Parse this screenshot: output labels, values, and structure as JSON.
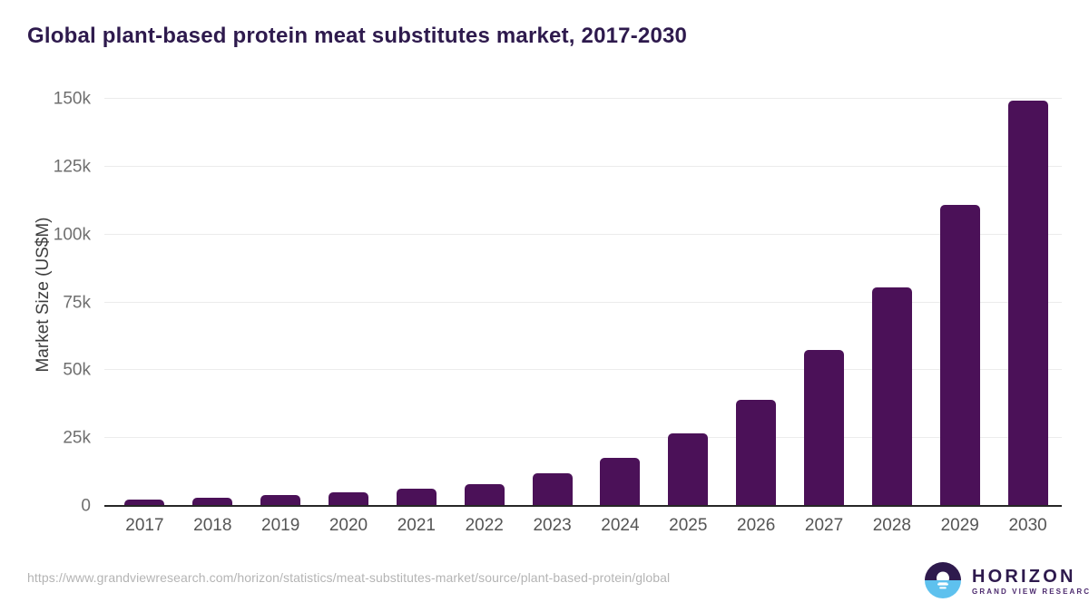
{
  "title": "Global plant-based protein meat substitutes market, 2017-2030",
  "chart_data": {
    "type": "bar",
    "title": "Global plant-based protein meat substitutes market, 2017-2030",
    "categories": [
      "2017",
      "2018",
      "2019",
      "2020",
      "2021",
      "2022",
      "2023",
      "2024",
      "2025",
      "2026",
      "2027",
      "2028",
      "2029",
      "2030"
    ],
    "values": [
      2250,
      3050,
      4100,
      5000,
      6300,
      8100,
      11900,
      17700,
      26600,
      39200,
      57300,
      80400,
      110900,
      149300
    ],
    "xlabel": "",
    "ylabel": "Market Size (US$M)",
    "ylim": [
      0,
      150000
    ],
    "yticks": [
      {
        "label": "0",
        "value": 0
      },
      {
        "label": "25k",
        "value": 25000
      },
      {
        "label": "50k",
        "value": 50000
      },
      {
        "label": "75k",
        "value": 75000
      },
      {
        "label": "100k",
        "value": 100000
      },
      {
        "label": "125k",
        "value": 125000
      },
      {
        "label": "150k",
        "value": 150000
      }
    ],
    "grid": "horizontal",
    "legend": "none",
    "bar_color": "#4b1158"
  },
  "footer": {
    "source_url": "https://www.grandviewresearch.com/horizon/statistics/meat-substitutes-market/source/plant-based-protein/global",
    "logo": {
      "brand": "HORIZON",
      "sub_brand": "GRAND VIEW RESEARCH"
    }
  },
  "colors": {
    "bar": "#4b1158",
    "title_text": "#2e1a4d",
    "tick_text": "#6f6f6f",
    "xtick_text": "#555555",
    "gridline": "#ececec",
    "axis_line": "#262626",
    "url_text": "#b4b4b4",
    "logo_purple": "#2e1a4d",
    "logo_blue": "#5ec1ee"
  }
}
